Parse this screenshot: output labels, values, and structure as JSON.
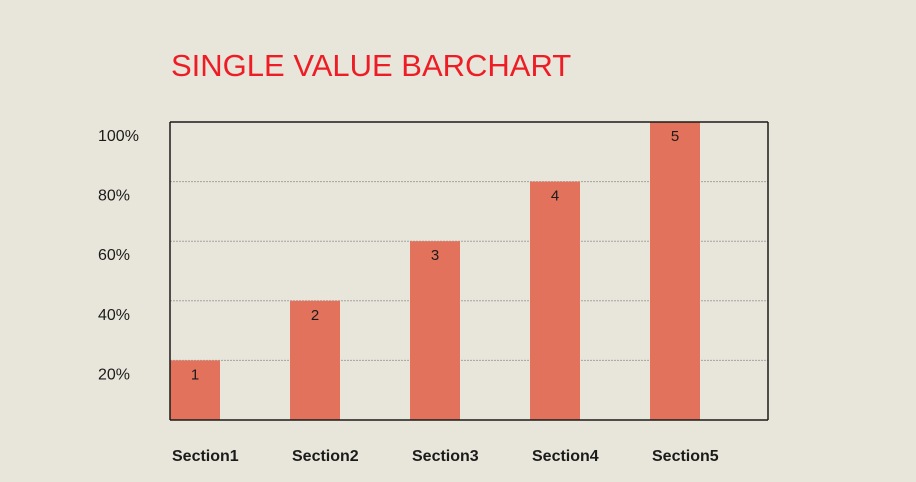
{
  "chart_data": {
    "type": "bar",
    "title": "SINGLE VALUE BARCHART",
    "categories": [
      "Section1",
      "Section2",
      "Section3",
      "Section4",
      "Section5"
    ],
    "values": [
      1,
      2,
      3,
      4,
      5
    ],
    "data_labels": [
      "1",
      "2",
      "3",
      "4",
      "5"
    ],
    "yticks": [
      {
        "value": 1,
        "label": "20%"
      },
      {
        "value": 2,
        "label": "40%"
      },
      {
        "value": 3,
        "label": "60%"
      },
      {
        "value": 4,
        "label": "80%"
      },
      {
        "value": 5,
        "label": "100%"
      }
    ],
    "ylim": [
      0,
      5
    ],
    "grid": true,
    "legend": "none",
    "colors": {
      "bar": "#e2725b",
      "title": "#ee1c25",
      "background": "#e8e5da",
      "axis": "#1b1b1b",
      "grid": "#a3a3a3"
    }
  }
}
